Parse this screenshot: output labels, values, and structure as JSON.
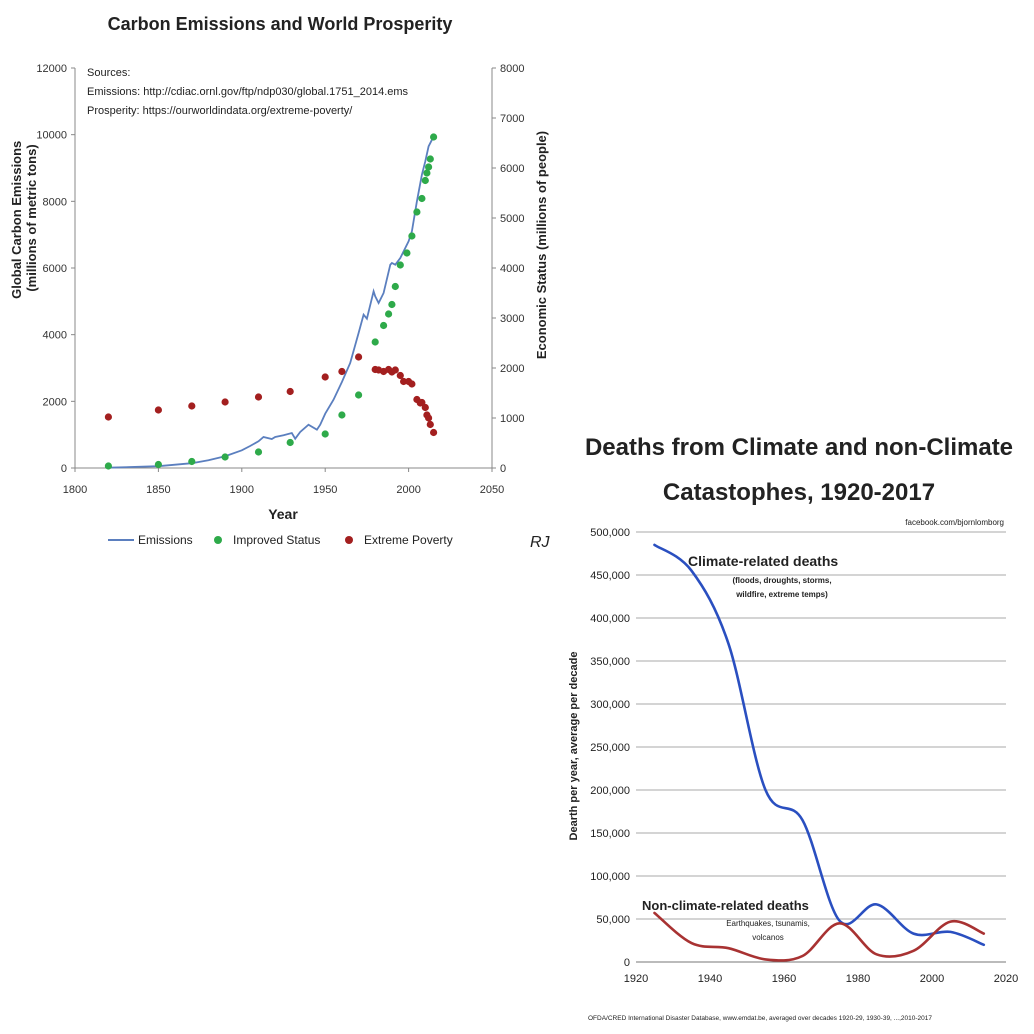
{
  "chart_data": [
    {
      "type": "line",
      "title": "Carbon Emissions and World Prosperity",
      "xlabel": "Year",
      "ylabel": "Global Carbon Emissions (millions of metric tons)",
      "y2label": "Economic Status (millions of people)",
      "xlim": [
        1800,
        2050
      ],
      "ylim": [
        0,
        12000
      ],
      "y2lim": [
        0,
        8000
      ],
      "xticks": [
        "1800",
        "1850",
        "1900",
        "1950",
        "2000",
        "2050"
      ],
      "yticks": [
        "0",
        "2000",
        "4000",
        "6000",
        "8000",
        "10000",
        "12000"
      ],
      "y2ticks": [
        "0",
        "1000",
        "2000",
        "3000",
        "4000",
        "5000",
        "6000",
        "7000",
        "8000"
      ],
      "sources": [
        "Sources:",
        "Emissions: http://cdiac.ornl.gov/ftp/ndp030/global.1751_2014.ems",
        "Prosperity: https://ourworldindata.org/extreme-poverty/"
      ],
      "legend_position": "bottom",
      "series": [
        {
          "name": "Emissions",
          "kind": "line",
          "color": "#5b7fbf",
          "axis": "left",
          "x": [
            1820,
            1850,
            1870,
            1880,
            1890,
            1900,
            1905,
            1910,
            1913,
            1918,
            1920,
            1925,
            1930,
            1932,
            1935,
            1940,
            1945,
            1947,
            1950,
            1955,
            1960,
            1965,
            1970,
            1973,
            1975,
            1979,
            1980,
            1982,
            1985,
            1989,
            1990,
            1992,
            1995,
            2000,
            2002,
            2005,
            2008,
            2010,
            2012,
            2014
          ],
          "y": [
            10,
            55,
            145,
            235,
            355,
            530,
            660,
            800,
            930,
            870,
            930,
            980,
            1050,
            880,
            1080,
            1300,
            1150,
            1300,
            1630,
            2050,
            2580,
            3150,
            4050,
            4600,
            4480,
            5300,
            5150,
            4950,
            5250,
            6100,
            6150,
            6100,
            6300,
            6800,
            7100,
            8000,
            8800,
            9200,
            9650,
            9850
          ]
        },
        {
          "name": "Improved Status",
          "kind": "scatter",
          "color": "#2eaa4a",
          "axis": "right",
          "x": [
            1820,
            1850,
            1870,
            1890,
            1910,
            1929,
            1950,
            1960,
            1970,
            1980,
            1985,
            1988,
            1990,
            1992,
            1995,
            1999,
            2002,
            2005,
            2008,
            2010,
            2011,
            2012,
            2013,
            2015
          ],
          "y": [
            40,
            70,
            130,
            220,
            320,
            510,
            680,
            1060,
            1460,
            2520,
            2850,
            3080,
            3270,
            3630,
            4060,
            4300,
            4640,
            5120,
            5390,
            5750,
            5900,
            6020,
            6180,
            6620
          ]
        },
        {
          "name": "Extreme Poverty",
          "kind": "scatter",
          "color": "#a31f1f",
          "axis": "right",
          "x": [
            1820,
            1850,
            1870,
            1890,
            1910,
            1929,
            1950,
            1960,
            1970,
            1980,
            1982,
            1985,
            1988,
            1990,
            1992,
            1995,
            1997,
            2000,
            2002,
            2005,
            2007,
            2008,
            2010,
            2011,
            2012,
            2013,
            2015
          ],
          "y": [
            1020,
            1160,
            1240,
            1320,
            1420,
            1530,
            1820,
            1930,
            2220,
            1970,
            1960,
            1930,
            1970,
            1920,
            1960,
            1850,
            1730,
            1730,
            1680,
            1370,
            1300,
            1310,
            1210,
            1060,
            1000,
            870,
            710
          ]
        }
      ]
    },
    {
      "type": "line",
      "title": "Deaths from Climate and non-Climate Catastophes, 1920-2017",
      "title_lines": [
        "Deaths from Climate and non-Climate",
        "Catastophes, 1920-2017"
      ],
      "credit": "facebook.com/bjornlomborg",
      "source": "OFDA/CRED International Disaster Database, www.emdat.be, averaged over decades 1920-29, 1930-39, ...,2010-2017",
      "xlabel": "",
      "ylabel": "Dearth per year, average per decade",
      "xlim": [
        1920,
        2020
      ],
      "ylim": [
        0,
        500000
      ],
      "xticks": [
        "1920",
        "1940",
        "1960",
        "1980",
        "2000",
        "2020"
      ],
      "yticks": [
        "0",
        "50,000",
        "100,000",
        "150,000",
        "200,000",
        "250,000",
        "300,000",
        "350,000",
        "400,000",
        "450,000",
        "500,000"
      ],
      "series": [
        {
          "name": "Climate-related deaths",
          "annotation": [
            "(floods, droughts, storms,",
            "wildfire, extreme temps)"
          ],
          "color": "#2a4fc0",
          "x": [
            1925,
            1935,
            1945,
            1955,
            1965,
            1975,
            1985,
            1995,
            2005,
            2014
          ],
          "y": [
            485000,
            455000,
            370000,
            200000,
            165000,
            48000,
            67000,
            33000,
            35000,
            20000
          ]
        },
        {
          "name": "Non-climate-related deaths",
          "annotation": [
            "Earthquakes, tsunamis,",
            "volcanos"
          ],
          "color": "#a83232",
          "x": [
            1925,
            1935,
            1945,
            1955,
            1965,
            1975,
            1985,
            1995,
            2005,
            2014
          ],
          "y": [
            57000,
            22000,
            16000,
            3000,
            7000,
            45000,
            9000,
            13000,
            47000,
            33000
          ]
        }
      ]
    }
  ],
  "scribble": "RJ"
}
